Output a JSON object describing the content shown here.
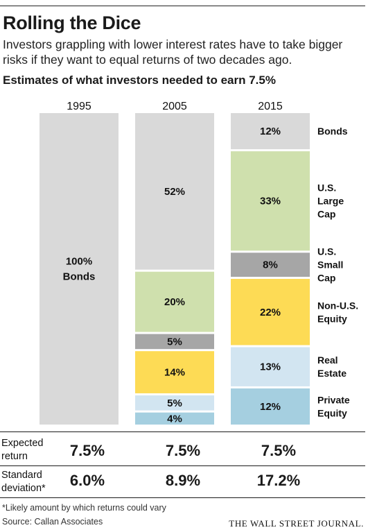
{
  "header": {
    "title": "Rolling the Dice",
    "subtitle": "Investors grappling with lower interest rates have to take bigger risks if they want to equal returns of two decades ago.",
    "chart_heading": "Estimates of what investors needed to earn 7.5%"
  },
  "colors": {
    "Bonds": "#d9d9d9",
    "U.S. Large Cap": "#cfe0ad",
    "U.S. Small Cap": "#a6a6a6",
    "Non-U.S. Equity": "#fddb55",
    "Real Estate": "#d2e5f1",
    "Private Equity": "#a5cfe0"
  },
  "chart_data": {
    "type": "bar",
    "stacked": true,
    "categories": [
      "1995",
      "2005",
      "2015"
    ],
    "ylim": [
      0,
      100
    ],
    "series": [
      {
        "name": "Bonds",
        "values": [
          100,
          52,
          12
        ]
      },
      {
        "name": "U.S. Large Cap",
        "values": [
          0,
          20,
          33
        ]
      },
      {
        "name": "U.S. Small Cap",
        "values": [
          0,
          5,
          8
        ]
      },
      {
        "name": "Non-U.S. Equity",
        "values": [
          0,
          14,
          22
        ]
      },
      {
        "name": "Real Estate",
        "values": [
          0,
          5,
          13
        ]
      },
      {
        "name": "Private Equity",
        "values": [
          0,
          4,
          12
        ]
      }
    ],
    "bar_labels": {
      "1995": {
        "Bonds": "100%\nBonds"
      }
    },
    "legend": [
      {
        "series": "Bonds",
        "text": "Bonds"
      },
      {
        "series": "U.S. Large Cap",
        "text": "U.S.\nLarge\nCap"
      },
      {
        "series": "U.S. Small Cap",
        "text": "U.S.\nSmall\nCap"
      },
      {
        "series": "Non-U.S. Equity",
        "text": "Non-U.S.\nEquity"
      },
      {
        "series": "Real Estate",
        "text": "Real\nEstate"
      },
      {
        "series": "Private Equity",
        "text": "Private\nEquity"
      }
    ],
    "legend_position": "right"
  },
  "stats": {
    "expected_return": {
      "label": "Expected\nreturn",
      "values": [
        "7.5%",
        "7.5%",
        "7.5%"
      ]
    },
    "standard_deviation": {
      "label": "Standard\ndeviation*",
      "values": [
        "6.0%",
        "8.9%",
        "17.2%"
      ]
    }
  },
  "footnote": "*Likely amount by which returns could vary",
  "source": "Source: Callan Associates",
  "credit": "THE WALL STREET JOURNAL."
}
